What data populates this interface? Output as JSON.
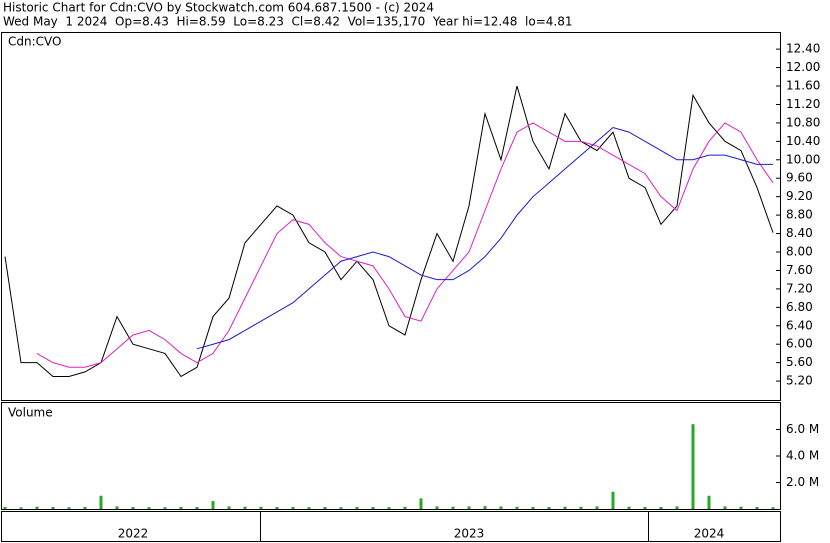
{
  "header": {
    "title": "Historic Chart for Cdn:CVO by Stockwatch.com 604.687.1500 - (c) 2024",
    "info": "Wed May  1 2024  Op=8.43  Hi=8.59  Lo=8.23  Cl=8.42  Vol=135,170  Year hi=12.48  lo=4.81"
  },
  "chart_data": [
    {
      "type": "line",
      "title": "Cdn:CVO",
      "categories": [
        null,
        null,
        null,
        null,
        null,
        null,
        null,
        null,
        "2022",
        null,
        null,
        null,
        null,
        null,
        null,
        null,
        null,
        null,
        null,
        null,
        null,
        null,
        null,
        null,
        null,
        null,
        null,
        null,
        null,
        "2023",
        null,
        null,
        null,
        null,
        null,
        null,
        null,
        null,
        null,
        null,
        null,
        null,
        null,
        null,
        "2024",
        null,
        null,
        null,
        null
      ],
      "series": [
        {
          "color": "#000000",
          "values": [
            7.9,
            5.6,
            5.6,
            5.3,
            5.3,
            5.4,
            5.6,
            6.6,
            6.0,
            5.9,
            5.8,
            5.3,
            5.5,
            6.6,
            7.0,
            8.2,
            8.6,
            9.0,
            8.8,
            8.2,
            8.0,
            7.4,
            7.8,
            7.4,
            6.4,
            6.2,
            7.4,
            8.4,
            7.8,
            9.0,
            11.0,
            10.0,
            11.6,
            10.4,
            9.8,
            11.0,
            10.4,
            10.2,
            10.6,
            9.6,
            9.4,
            8.6,
            9.0,
            11.4,
            10.8,
            10.4,
            10.2,
            9.4,
            8.42
          ]
        },
        {
          "color": "#e020c0",
          "values": [
            null,
            null,
            5.8,
            5.6,
            5.5,
            5.5,
            5.6,
            5.9,
            6.2,
            6.3,
            6.1,
            5.8,
            5.6,
            5.8,
            6.3,
            7.0,
            7.7,
            8.4,
            8.7,
            8.6,
            8.2,
            7.9,
            7.8,
            7.7,
            7.2,
            6.6,
            6.5,
            7.2,
            7.6,
            8.0,
            8.9,
            9.8,
            10.6,
            10.8,
            10.6,
            10.4,
            10.4,
            10.3,
            10.1,
            9.9,
            9.7,
            9.2,
            8.9,
            9.8,
            10.4,
            10.8,
            10.6,
            10.0,
            9.5
          ]
        },
        {
          "color": "#1a1acc",
          "values": [
            null,
            null,
            null,
            null,
            null,
            null,
            null,
            null,
            null,
            null,
            null,
            null,
            5.9,
            6.0,
            6.1,
            6.3,
            6.5,
            6.7,
            6.9,
            7.2,
            7.5,
            7.8,
            7.9,
            8.0,
            7.9,
            7.7,
            7.5,
            7.4,
            7.4,
            7.6,
            7.9,
            8.3,
            8.8,
            9.2,
            9.5,
            9.8,
            10.1,
            10.4,
            10.7,
            10.6,
            10.4,
            10.2,
            10.0,
            10.0,
            10.1,
            10.1,
            10.0,
            9.9,
            9.9
          ]
        }
      ],
      "ylim": [
        4.79,
        12.75
      ],
      "yticks": [
        {
          "value": 5.2,
          "label": "5.20"
        },
        {
          "value": 5.6,
          "label": "5.60"
        },
        {
          "value": 6.0,
          "label": "6.00"
        },
        {
          "value": 6.4,
          "label": "6.40"
        },
        {
          "value": 6.8,
          "label": "6.80"
        },
        {
          "value": 7.2,
          "label": "7.20"
        },
        {
          "value": 7.6,
          "label": "7.60"
        },
        {
          "value": 8.0,
          "label": "8.00"
        },
        {
          "value": 8.4,
          "label": "8.40"
        },
        {
          "value": 8.8,
          "label": "8.80"
        },
        {
          "value": 9.2,
          "label": "9.20"
        },
        {
          "value": 9.6,
          "label": "9.60"
        },
        {
          "value": 10.0,
          "label": "10.00"
        },
        {
          "value": 10.4,
          "label": "10.40"
        },
        {
          "value": 10.8,
          "label": "10.80"
        },
        {
          "value": 11.2,
          "label": "11.20"
        },
        {
          "value": 11.6,
          "label": "11.60"
        },
        {
          "value": 12.0,
          "label": "12.00"
        },
        {
          "value": 12.4,
          "label": "12.40"
        }
      ]
    },
    {
      "type": "bar",
      "title": "Volume",
      "color": "#22aa22",
      "values": [
        150000,
        120000,
        180000,
        150000,
        130000,
        160000,
        1000000,
        200000,
        150000,
        140000,
        130000,
        160000,
        150000,
        600000,
        200000,
        180000,
        170000,
        150000,
        160000,
        140000,
        150000,
        130000,
        160000,
        150000,
        140000,
        170000,
        800000,
        200000,
        180000,
        200000,
        220000,
        190000,
        170000,
        160000,
        150000,
        180000,
        170000,
        200000,
        1300000,
        180000,
        160000,
        150000,
        200000,
        6400000,
        1000000,
        200000,
        180000,
        150000,
        135170
      ],
      "ylim": [
        0,
        8000000
      ],
      "yticks": [
        {
          "value": 2000000,
          "label": "2.0 M"
        },
        {
          "value": 4000000,
          "label": "4.0 M"
        },
        {
          "value": 6000000,
          "label": "6.0 M"
        }
      ]
    }
  ]
}
